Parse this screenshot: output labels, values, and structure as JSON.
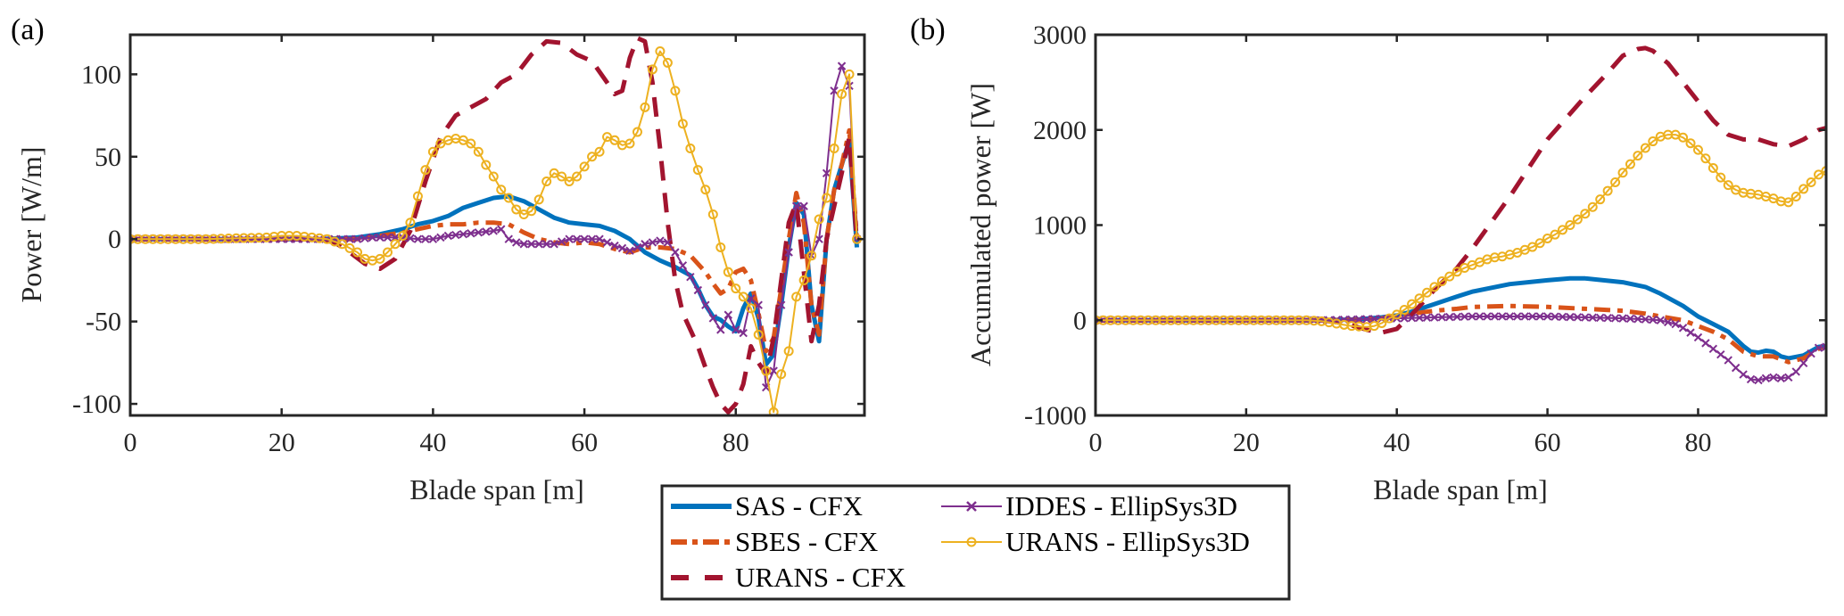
{
  "figure": {
    "legend": {
      "entries": [
        {
          "label": "SAS   - CFX",
          "series": "sas_cfx"
        },
        {
          "label": "SBES   - CFX",
          "series": "sbes_cfx"
        },
        {
          "label": "URANS - CFX",
          "series": "urans_cfx"
        },
        {
          "label": "IDDES   - EllipSys3D",
          "series": "iddes_ellip"
        },
        {
          "label": "URANS - EllipSys3D",
          "series": "urans_ellip"
        }
      ],
      "placement": "bottom-center, between panels",
      "columns": 2
    },
    "styles": {
      "sas_cfx": {
        "color": "#0072BD",
        "dash": "solid",
        "marker": "none"
      },
      "sbes_cfx": {
        "color": "#D95319",
        "dash": "dashdot",
        "marker": "none"
      },
      "urans_cfx": {
        "color": "#A2142F",
        "dash": "dashed",
        "marker": "none"
      },
      "iddes_ellip": {
        "color": "#7E2F8E",
        "dash": "solid",
        "marker": "x"
      },
      "urans_ellip": {
        "color": "#EDB120",
        "dash": "solid",
        "marker": "o"
      }
    }
  },
  "chart_data": [
    {
      "type": "line",
      "panel_label": "(a)",
      "title": "",
      "xlabel": "Blade span  [m]",
      "ylabel": "Power  [W/m]",
      "xlim": [
        0,
        97
      ],
      "ylim": [
        -107,
        124
      ],
      "xticks": [
        0,
        20,
        40,
        60,
        80
      ],
      "yticks": [
        -100,
        -50,
        0,
        50,
        100
      ],
      "grid": false,
      "series": [
        {
          "name": "SAS - CFX",
          "key": "sas_cfx",
          "x": [
            0,
            10,
            20,
            25,
            30,
            33,
            36,
            38,
            40,
            42,
            44,
            46,
            48,
            50,
            52,
            54,
            56,
            58,
            60,
            62,
            64,
            66,
            68,
            70,
            72,
            74,
            75,
            76,
            77,
            78,
            79,
            80,
            81,
            82,
            83,
            84,
            85,
            86,
            87,
            88,
            89,
            90,
            91,
            92,
            93,
            94,
            95,
            96
          ],
          "y": [
            0,
            0,
            0,
            0,
            1,
            3,
            6,
            9,
            11,
            14,
            19,
            22,
            25,
            26,
            23,
            18,
            13,
            10,
            9,
            8,
            5,
            0,
            -8,
            -13,
            -17,
            -22,
            -30,
            -40,
            -47,
            -49,
            -53,
            -56,
            -42,
            -33,
            -48,
            -76,
            -70,
            -40,
            -5,
            22,
            15,
            -40,
            -62,
            0,
            30,
            45,
            60,
            -5
          ]
        },
        {
          "name": "SBES - CFX",
          "key": "sbes_cfx",
          "x": [
            0,
            10,
            20,
            25,
            30,
            33,
            36,
            38,
            40,
            42,
            44,
            46,
            48,
            50,
            52,
            54,
            56,
            58,
            60,
            62,
            64,
            66,
            68,
            70,
            72,
            74,
            76,
            77,
            78,
            79,
            80,
            81,
            82,
            83,
            84,
            85,
            86,
            87,
            88,
            89,
            90,
            91,
            92,
            93,
            94,
            95,
            96
          ],
          "y": [
            0,
            0,
            0,
            0,
            0,
            2,
            4,
            6,
            8,
            9,
            9,
            10,
            10,
            9,
            4,
            0,
            -2,
            -3,
            -2,
            -3,
            -6,
            -8,
            -5,
            -5,
            -6,
            -10,
            -20,
            -27,
            -33,
            -30,
            -20,
            -18,
            -25,
            -45,
            -68,
            -60,
            -30,
            0,
            28,
            10,
            -40,
            -58,
            0,
            30,
            45,
            66,
            0
          ]
        },
        {
          "name": "URANS - CFX",
          "key": "urans_cfx",
          "x": [
            0,
            20,
            25,
            27,
            29,
            31,
            33,
            35,
            37,
            39,
            41,
            43,
            45,
            47,
            49,
            51,
            53,
            55,
            57,
            59,
            61,
            63,
            64,
            65,
            66,
            67,
            68,
            69,
            70,
            71,
            72,
            73,
            74,
            75,
            76,
            77,
            78,
            79,
            80,
            81,
            82,
            83,
            84,
            85,
            86,
            87,
            88,
            89,
            90,
            91,
            92,
            93,
            94,
            95,
            96
          ],
          "y": [
            0,
            0,
            0,
            -2,
            -8,
            -15,
            -18,
            -12,
            5,
            35,
            62,
            75,
            80,
            85,
            95,
            100,
            112,
            120,
            119,
            112,
            108,
            95,
            88,
            90,
            110,
            122,
            120,
            95,
            55,
            10,
            -25,
            -45,
            -55,
            -65,
            -78,
            -90,
            -100,
            -105,
            -100,
            -88,
            -65,
            -75,
            -82,
            -60,
            -25,
            10,
            22,
            -20,
            -62,
            -40,
            0,
            20,
            40,
            62,
            -2
          ]
        },
        {
          "name": "IDDES - EllipSys3D",
          "key": "iddes_ellip",
          "x": [
            0,
            10,
            20,
            25,
            30,
            32,
            34,
            36,
            38,
            40,
            42,
            44,
            46,
            48,
            49,
            50,
            51,
            52,
            54,
            56,
            58,
            60,
            62,
            64,
            66,
            67,
            68,
            69,
            70,
            71,
            72,
            73,
            74,
            75,
            76,
            77,
            78,
            79,
            80,
            81,
            82,
            83,
            84,
            85,
            86,
            87,
            88,
            89,
            90,
            91,
            92,
            93,
            94,
            95,
            96
          ],
          "y": [
            0,
            0,
            0,
            0,
            0,
            1,
            1,
            1,
            0,
            0,
            2,
            3,
            4,
            5,
            6,
            0,
            -2,
            -3,
            -3,
            -3,
            0,
            0,
            0,
            -4,
            -7,
            -5,
            -3,
            -2,
            -1,
            -2,
            -8,
            -16,
            -23,
            -31,
            -40,
            -48,
            -55,
            -46,
            -55,
            -57,
            -36,
            -40,
            -90,
            -80,
            -40,
            -8,
            20,
            20,
            -10,
            0,
            40,
            90,
            105,
            93,
            0
          ]
        },
        {
          "name": "URANS - EllipSys3D",
          "key": "urans_ellip",
          "x": [
            0,
            10,
            18,
            20,
            22,
            24,
            26,
            28,
            30,
            31,
            32,
            33,
            34,
            35,
            36,
            37,
            38,
            39,
            40,
            41,
            42,
            43,
            44,
            45,
            46,
            47,
            48,
            49,
            50,
            51,
            52,
            53,
            54,
            55,
            56,
            57,
            58,
            59,
            60,
            61,
            62,
            63,
            64,
            65,
            66,
            67,
            68,
            69,
            70,
            71,
            72,
            73,
            74,
            75,
            76,
            77,
            78,
            79,
            80,
            81,
            82,
            83,
            84,
            85,
            86,
            87,
            88,
            89,
            90,
            91,
            92,
            93,
            94,
            95,
            96
          ],
          "y": [
            0,
            0,
            1,
            2,
            2,
            1,
            0,
            -3,
            -8,
            -12,
            -13,
            -12,
            -8,
            -3,
            2,
            10,
            26,
            42,
            53,
            58,
            60,
            61,
            60,
            58,
            53,
            45,
            38,
            30,
            25,
            18,
            15,
            17,
            24,
            35,
            40,
            38,
            35,
            38,
            44,
            50,
            53,
            62,
            60,
            57,
            58,
            65,
            80,
            103,
            114,
            107,
            90,
            70,
            55,
            42,
            30,
            15,
            -5,
            -20,
            -30,
            -35,
            -42,
            -58,
            -80,
            -105,
            -82,
            -68,
            -35,
            -25,
            -10,
            12,
            25,
            55,
            88,
            100,
            0
          ]
        }
      ]
    },
    {
      "type": "line",
      "panel_label": "(b)",
      "title": "",
      "xlabel": "Blade span  [m]",
      "ylabel": "Accumulated power  [W]",
      "xlim": [
        0,
        97
      ],
      "ylim": [
        -1000,
        3000
      ],
      "xticks": [
        0,
        20,
        40,
        60,
        80
      ],
      "yticks": [
        -1000,
        0,
        1000,
        2000,
        3000
      ],
      "grid": false,
      "series": [
        {
          "name": "SAS - CFX",
          "key": "sas_cfx",
          "x": [
            0,
            20,
            30,
            35,
            38,
            40,
            42,
            45,
            48,
            50,
            55,
            60,
            63,
            65,
            70,
            73,
            75,
            78,
            80,
            82,
            84,
            86,
            87,
            88,
            89,
            90,
            91,
            92,
            94,
            96,
            97
          ],
          "y": [
            0,
            0,
            0,
            10,
            30,
            50,
            90,
            170,
            250,
            300,
            380,
            420,
            440,
            440,
            400,
            350,
            280,
            150,
            40,
            -40,
            -120,
            -270,
            -330,
            -340,
            -320,
            -330,
            -380,
            -400,
            -370,
            -280,
            -270
          ]
        },
        {
          "name": "SBES - CFX",
          "key": "sbes_cfx",
          "x": [
            0,
            20,
            30,
            35,
            38,
            40,
            42,
            45,
            48,
            50,
            55,
            60,
            65,
            70,
            73,
            75,
            78,
            80,
            82,
            84,
            86,
            88,
            90,
            92,
            94,
            96,
            97
          ],
          "y": [
            0,
            0,
            0,
            5,
            20,
            40,
            70,
            100,
            120,
            140,
            150,
            140,
            120,
            100,
            70,
            40,
            0,
            -60,
            -120,
            -200,
            -330,
            -380,
            -380,
            -440,
            -400,
            -300,
            -260
          ]
        },
        {
          "name": "URANS - CFX",
          "key": "urans_cfx",
          "x": [
            0,
            20,
            30,
            33,
            36,
            38,
            40,
            42,
            45,
            48,
            50,
            55,
            60,
            65,
            68,
            70,
            72,
            73,
            74,
            76,
            78,
            80,
            82,
            84,
            86,
            88,
            90,
            92,
            94,
            96,
            97
          ],
          "y": [
            0,
            0,
            0,
            -30,
            -100,
            -130,
            -90,
            60,
            320,
            550,
            750,
            1300,
            1900,
            2350,
            2600,
            2780,
            2850,
            2860,
            2830,
            2700,
            2500,
            2300,
            2100,
            1950,
            1900,
            1900,
            1850,
            1830,
            1900,
            2000,
            2020
          ]
        },
        {
          "name": "IDDES - EllipSys3D",
          "key": "iddes_ellip",
          "x": [
            0,
            10,
            20,
            30,
            35,
            40,
            45,
            50,
            55,
            60,
            65,
            70,
            73,
            75,
            77,
            78,
            80,
            82,
            84,
            85,
            86,
            87,
            88,
            89,
            90,
            91,
            92,
            93,
            94,
            95,
            96,
            97
          ],
          "y": [
            0,
            0,
            0,
            0,
            10,
            20,
            30,
            40,
            40,
            40,
            30,
            20,
            10,
            0,
            -40,
            -80,
            -180,
            -300,
            -420,
            -500,
            -570,
            -620,
            -630,
            -610,
            -600,
            -610,
            -600,
            -540,
            -450,
            -350,
            -290,
            -280
          ]
        },
        {
          "name": "URANS - EllipSys3D",
          "key": "urans_ellip",
          "x": [
            0,
            10,
            20,
            25,
            28,
            30,
            32,
            34,
            36,
            37,
            38,
            39,
            40,
            41,
            42,
            43,
            44,
            45,
            46,
            47,
            48,
            49,
            50,
            51,
            52,
            53,
            54,
            55,
            56,
            57,
            58,
            59,
            60,
            61,
            62,
            63,
            64,
            65,
            66,
            67,
            68,
            69,
            70,
            71,
            72,
            73,
            74,
            75,
            76,
            77,
            78,
            79,
            80,
            81,
            82,
            83,
            84,
            85,
            86,
            87,
            88,
            89,
            90,
            91,
            92,
            93,
            94,
            95,
            96,
            97
          ],
          "y": [
            0,
            0,
            0,
            0,
            0,
            -10,
            -35,
            -60,
            -70,
            -60,
            -30,
            20,
            60,
            110,
            170,
            230,
            290,
            350,
            410,
            460,
            510,
            550,
            580,
            610,
            640,
            660,
            670,
            690,
            710,
            740,
            770,
            810,
            860,
            900,
            950,
            1000,
            1060,
            1120,
            1190,
            1270,
            1360,
            1450,
            1550,
            1640,
            1730,
            1810,
            1880,
            1930,
            1950,
            1950,
            1920,
            1860,
            1790,
            1700,
            1600,
            1500,
            1420,
            1370,
            1340,
            1330,
            1320,
            1300,
            1280,
            1250,
            1240,
            1300,
            1380,
            1450,
            1530,
            1570
          ]
        }
      ]
    }
  ]
}
